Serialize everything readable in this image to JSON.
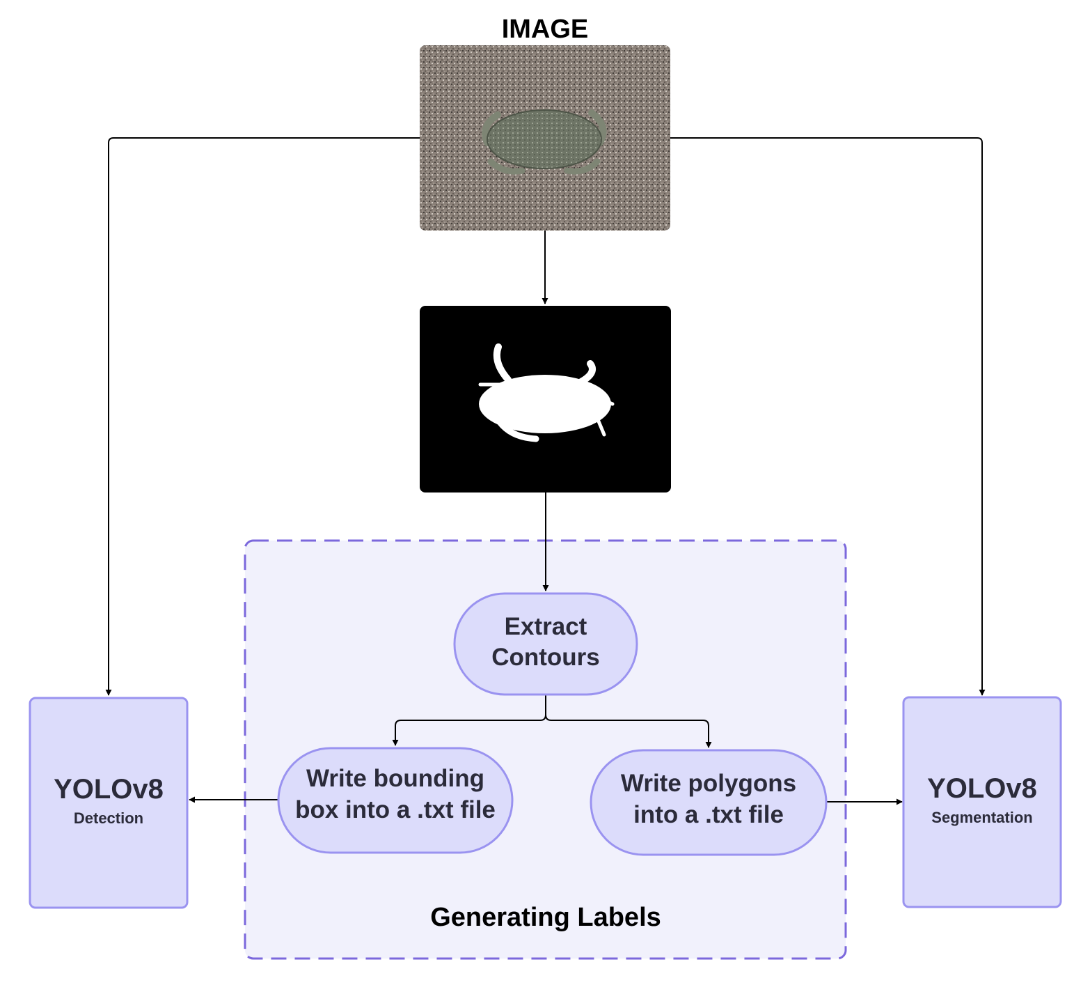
{
  "title": "IMAGE",
  "group": {
    "label": "Generating Labels",
    "fill": "#f1f1fc",
    "border": "#7b68dc"
  },
  "nodes": {
    "extract": {
      "lines": [
        "Extract",
        "Contours"
      ]
    },
    "bbox": {
      "lines": [
        "Write bounding",
        "box into a .txt file"
      ]
    },
    "polygons": {
      "lines": [
        "Write polygons",
        "into a .txt file"
      ]
    },
    "detection": {
      "title": "YOLOv8",
      "subtitle": "Detection"
    },
    "segmentation": {
      "title": "YOLOv8",
      "subtitle": "Segmentation"
    }
  },
  "images": {
    "photo": {
      "subject": "crab on sand",
      "icon": "crab-photo"
    },
    "mask": {
      "subject": "binary crab mask",
      "icon": "crab-mask"
    }
  },
  "colors": {
    "node_fill": "#dcdcfb",
    "node_border": "#9a93f0",
    "box_fill": "#dcdcfb",
    "box_border": "#9a93f0",
    "arrow": "#000000",
    "text": "#2b2b3a"
  }
}
